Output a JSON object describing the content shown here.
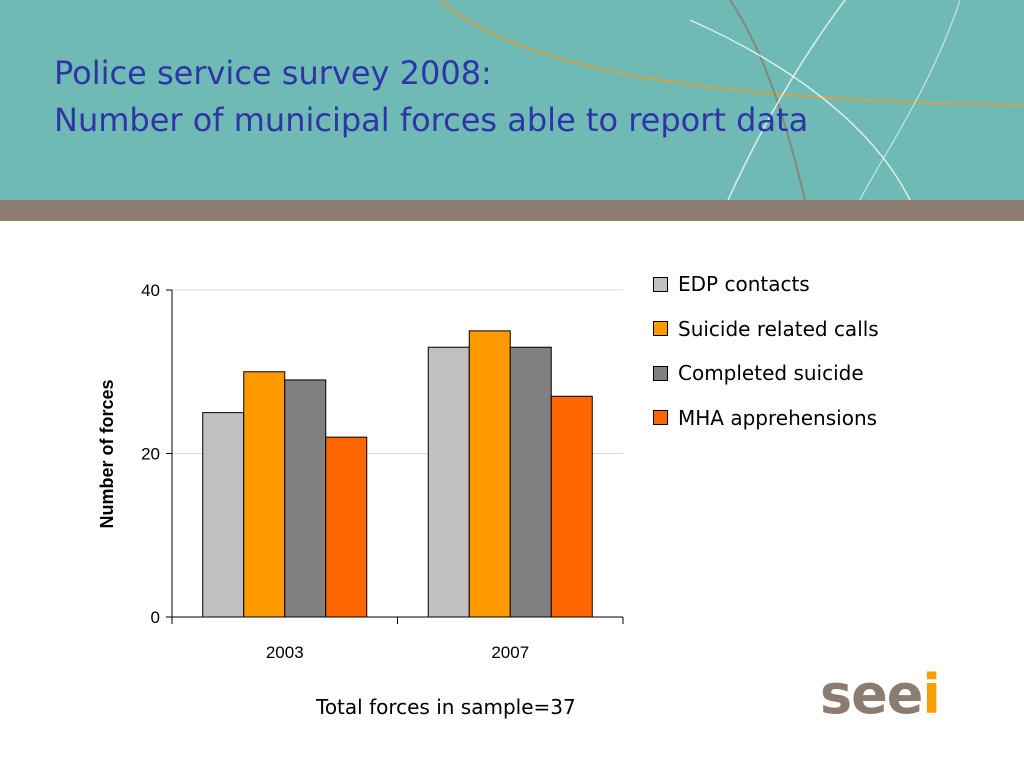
{
  "slide": {
    "title_line1": "Police service survey 2008:",
    "title_line2": "Number of municipal forces able to report data",
    "footnote": "Total forces in sample=37",
    "logo": {
      "text_main": "see",
      "text_accent": "i",
      "color_main": "#8c7b70",
      "color_accent": "#f5a000"
    },
    "colors": {
      "header_bg": "#6fbab5",
      "band": "#8c7b70",
      "title": "#2f35a8"
    }
  },
  "chart_data": {
    "type": "bar",
    "categories": [
      "2003",
      "2007"
    ],
    "series": [
      {
        "name": "EDP contacts",
        "values": [
          25,
          33
        ],
        "color": "#c0c0c0"
      },
      {
        "name": "Suicide related calls",
        "values": [
          30,
          35
        ],
        "color": "#ff9900"
      },
      {
        "name": "Completed suicide",
        "values": [
          29,
          33
        ],
        "color": "#808080"
      },
      {
        "name": "MHA apprehensions",
        "values": [
          22,
          27
        ],
        "color": "#ff6600"
      }
    ],
    "title": "",
    "xlabel": "",
    "ylabel": "Number of forces",
    "ylim": [
      0,
      40
    ],
    "yticks": [
      "0",
      "20",
      "40"
    ],
    "grid": true,
    "legend": "right"
  }
}
